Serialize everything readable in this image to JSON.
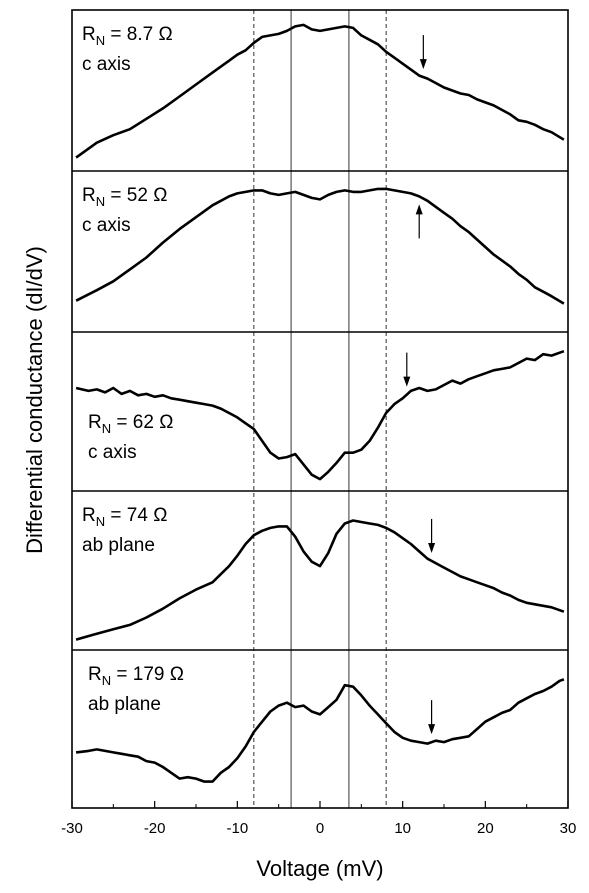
{
  "chart_data": {
    "type": "line",
    "xlabel": "Voltage (mV)",
    "ylabel": "Differential conductance (dI/dV)",
    "xlim": [
      -30,
      30
    ],
    "xticks": [
      {
        "value": -30,
        "label": "-30"
      },
      {
        "value": -20,
        "label": "-20"
      },
      {
        "value": -10,
        "label": "-10"
      },
      {
        "value": 0,
        "label": "0"
      },
      {
        "value": 10,
        "label": "10"
      },
      {
        "value": 20,
        "label": "20"
      },
      {
        "value": 30,
        "label": "30"
      }
    ],
    "reference_lines": {
      "solid": [
        -3.5,
        3.5
      ],
      "dashed": [
        -8,
        8
      ]
    },
    "panels": [
      {
        "rn_label": "R",
        "rn_subscript": "N",
        "rn_value": " = 8.7 Ω",
        "orientation": "c axis",
        "arrow": {
          "x": 12.5,
          "direction": "down"
        },
        "ylim": [
          0,
          1
        ],
        "x": [
          -29.5,
          -27,
          -25,
          -23,
          -21,
          -19,
          -17,
          -15,
          -13,
          -11,
          -10,
          -9,
          -8,
          -7,
          -6,
          -5,
          -4,
          -3,
          -2,
          -1,
          0,
          1,
          2,
          3,
          4,
          5,
          6,
          7,
          8,
          9,
          10,
          11,
          12,
          13,
          14,
          15,
          16,
          17,
          18,
          19,
          20,
          21,
          22,
          23,
          24,
          25,
          26,
          27,
          28,
          29.5
        ],
        "y": [
          0.05,
          0.15,
          0.2,
          0.24,
          0.31,
          0.38,
          0.46,
          0.54,
          0.62,
          0.7,
          0.74,
          0.77,
          0.82,
          0.86,
          0.87,
          0.88,
          0.9,
          0.93,
          0.94,
          0.91,
          0.9,
          0.91,
          0.92,
          0.93,
          0.92,
          0.87,
          0.84,
          0.81,
          0.76,
          0.72,
          0.68,
          0.64,
          0.6,
          0.58,
          0.55,
          0.52,
          0.5,
          0.48,
          0.47,
          0.44,
          0.42,
          0.4,
          0.37,
          0.34,
          0.3,
          0.29,
          0.27,
          0.24,
          0.22,
          0.17
        ]
      },
      {
        "rn_label": "R",
        "rn_subscript": "N",
        "rn_value": " = 52 Ω",
        "orientation": "c axis",
        "arrow": {
          "x": 12,
          "direction": "up"
        },
        "ylim": [
          0,
          1
        ],
        "x": [
          -29.5,
          -27,
          -25,
          -23,
          -21,
          -19,
          -17,
          -15,
          -13,
          -11,
          -10,
          -9,
          -8,
          -7,
          -6,
          -5,
          -4,
          -3,
          -2,
          -1,
          0,
          1,
          2,
          3,
          4,
          5,
          6,
          7,
          8,
          9,
          10,
          11,
          12,
          13,
          14,
          15,
          16,
          17,
          18,
          19,
          20,
          21,
          22,
          23,
          24,
          25,
          26,
          27,
          28,
          29.5
        ],
        "y": [
          0.17,
          0.24,
          0.3,
          0.38,
          0.46,
          0.56,
          0.65,
          0.73,
          0.81,
          0.87,
          0.89,
          0.9,
          0.91,
          0.91,
          0.89,
          0.88,
          0.89,
          0.9,
          0.88,
          0.86,
          0.85,
          0.88,
          0.9,
          0.91,
          0.9,
          0.9,
          0.91,
          0.92,
          0.92,
          0.91,
          0.9,
          0.89,
          0.87,
          0.84,
          0.8,
          0.76,
          0.72,
          0.67,
          0.63,
          0.58,
          0.53,
          0.48,
          0.44,
          0.4,
          0.35,
          0.31,
          0.26,
          0.23,
          0.2,
          0.15
        ]
      },
      {
        "rn_label": "R",
        "rn_subscript": "N",
        "rn_value": " = 62 Ω",
        "orientation": "c axis",
        "arrow": {
          "x": 10.5,
          "direction": "down"
        },
        "ylim": [
          0,
          1
        ],
        "x": [
          -29.5,
          -28,
          -27,
          -26,
          -25,
          -24,
          -23,
          -22,
          -21,
          -20,
          -19,
          -18,
          -17,
          -16,
          -15,
          -14,
          -13,
          -12,
          -11,
          -10,
          -9,
          -8,
          -7,
          -6,
          -5,
          -4,
          -3,
          -2,
          -1,
          0,
          1,
          2,
          3,
          4,
          5,
          6,
          7,
          8,
          9,
          10,
          11,
          12,
          13,
          14,
          15,
          16,
          17,
          18,
          19,
          20,
          21,
          22,
          23,
          24,
          25,
          26,
          27,
          28,
          29,
          29.5
        ],
        "y": [
          0.66,
          0.64,
          0.65,
          0.63,
          0.66,
          0.62,
          0.64,
          0.61,
          0.62,
          0.6,
          0.61,
          0.59,
          0.58,
          0.57,
          0.56,
          0.55,
          0.54,
          0.52,
          0.49,
          0.46,
          0.42,
          0.38,
          0.3,
          0.22,
          0.18,
          0.19,
          0.21,
          0.14,
          0.07,
          0.04,
          0.09,
          0.15,
          0.22,
          0.22,
          0.24,
          0.3,
          0.39,
          0.49,
          0.55,
          0.59,
          0.64,
          0.66,
          0.64,
          0.65,
          0.68,
          0.71,
          0.69,
          0.72,
          0.74,
          0.76,
          0.78,
          0.79,
          0.8,
          0.83,
          0.86,
          0.85,
          0.89,
          0.88,
          0.9,
          0.91
        ]
      },
      {
        "rn_label": "R",
        "rn_subscript": "N",
        "rn_value": " = 74 Ω",
        "orientation": "ab plane",
        "arrow": {
          "x": 13.5,
          "direction": "down"
        },
        "ylim": [
          0,
          1
        ],
        "x": [
          -29.5,
          -27,
          -25,
          -23,
          -21,
          -19,
          -17,
          -15,
          -13,
          -11,
          -10,
          -9,
          -8,
          -7,
          -6,
          -5,
          -4,
          -3,
          -2,
          -1,
          0,
          1,
          2,
          3,
          4,
          5,
          6,
          7,
          8,
          9,
          10,
          11,
          12,
          13,
          14,
          15,
          16,
          17,
          18,
          19,
          20,
          21,
          22,
          23,
          24,
          25,
          26,
          27,
          28,
          29.5
        ],
        "y": [
          0.03,
          0.07,
          0.1,
          0.13,
          0.18,
          0.24,
          0.31,
          0.37,
          0.42,
          0.53,
          0.6,
          0.68,
          0.74,
          0.77,
          0.79,
          0.8,
          0.8,
          0.73,
          0.63,
          0.56,
          0.53,
          0.62,
          0.75,
          0.82,
          0.84,
          0.83,
          0.82,
          0.81,
          0.79,
          0.76,
          0.72,
          0.68,
          0.63,
          0.58,
          0.55,
          0.52,
          0.49,
          0.46,
          0.44,
          0.42,
          0.4,
          0.38,
          0.35,
          0.33,
          0.3,
          0.28,
          0.27,
          0.26,
          0.25,
          0.22
        ]
      },
      {
        "rn_label": "R",
        "rn_subscript": "N",
        "rn_value": " = 179 Ω",
        "orientation": "ab plane",
        "arrow": {
          "x": 13.5,
          "direction": "down"
        },
        "ylim": [
          0,
          1
        ],
        "x": [
          -29.5,
          -28,
          -27,
          -26,
          -25,
          -24,
          -23,
          -22,
          -21,
          -20,
          -19,
          -18,
          -17,
          -16,
          -15,
          -14,
          -13,
          -12,
          -11,
          -10,
          -9,
          -8,
          -7,
          -6,
          -5,
          -4,
          -3,
          -2,
          -1,
          0,
          1,
          2,
          3,
          4,
          5,
          6,
          7,
          8,
          9,
          10,
          11,
          12,
          13,
          14,
          15,
          16,
          17,
          18,
          19,
          20,
          21,
          22,
          23,
          24,
          25,
          26,
          27,
          28,
          29,
          29.5
        ],
        "y": [
          0.34,
          0.35,
          0.36,
          0.35,
          0.34,
          0.33,
          0.32,
          0.31,
          0.28,
          0.27,
          0.24,
          0.2,
          0.16,
          0.17,
          0.16,
          0.14,
          0.14,
          0.2,
          0.24,
          0.3,
          0.38,
          0.48,
          0.55,
          0.62,
          0.66,
          0.68,
          0.65,
          0.66,
          0.62,
          0.6,
          0.65,
          0.7,
          0.8,
          0.79,
          0.73,
          0.66,
          0.6,
          0.54,
          0.48,
          0.44,
          0.42,
          0.41,
          0.4,
          0.42,
          0.41,
          0.43,
          0.44,
          0.45,
          0.5,
          0.55,
          0.58,
          0.61,
          0.63,
          0.68,
          0.71,
          0.74,
          0.76,
          0.79,
          0.83,
          0.84
        ]
      }
    ]
  }
}
